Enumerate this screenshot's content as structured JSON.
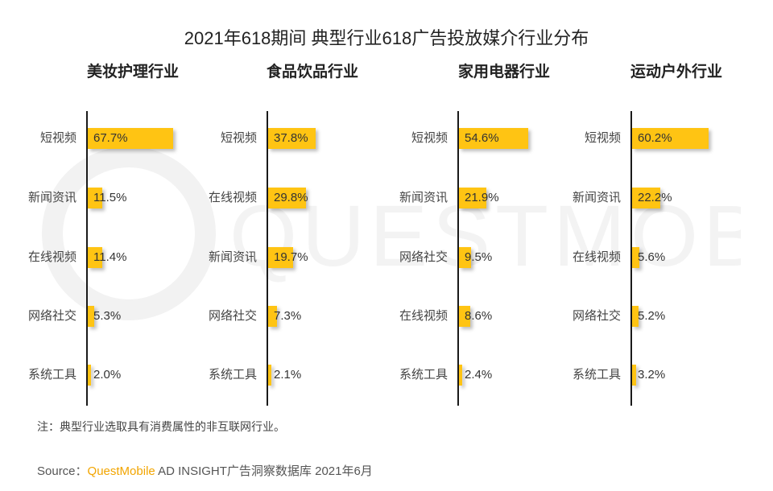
{
  "chart_data": {
    "type": "bar",
    "title": "2021年618期间 典型行业618广告投放媒介行业分布",
    "panels": [
      {
        "title": "美妆护理行业",
        "categories": [
          "短视频",
          "新闻资讯",
          "在线视频",
          "网络社交",
          "系统工具"
        ],
        "values": [
          67.7,
          11.5,
          11.4,
          5.3,
          2.0
        ],
        "labels": [
          "67.7%",
          "11.5%",
          "11.4%",
          "5.3%",
          "2.0%"
        ]
      },
      {
        "title": "食品饮品行业",
        "categories": [
          "短视频",
          "在线视频",
          "新闻资讯",
          "网络社交",
          "系统工具"
        ],
        "values": [
          37.8,
          29.8,
          19.7,
          7.3,
          2.1
        ],
        "labels": [
          "37.8%",
          "29.8%",
          "19.7%",
          "7.3%",
          "2.1%"
        ]
      },
      {
        "title": "家用电器行业",
        "categories": [
          "短视频",
          "新闻资讯",
          "网络社交",
          "在线视频",
          "系统工具"
        ],
        "values": [
          54.6,
          21.9,
          9.5,
          8.6,
          2.4
        ],
        "labels": [
          "54.6%",
          "21.9%",
          "9.5%",
          "8.6%",
          "2.4%"
        ]
      },
      {
        "title": "运动户外行业",
        "categories": [
          "短视频",
          "新闻资讯",
          "在线视频",
          "网络社交",
          "系统工具"
        ],
        "values": [
          60.2,
          22.2,
          5.6,
          5.2,
          3.2
        ],
        "labels": [
          "60.2%",
          "22.2%",
          "5.6%",
          "5.2%",
          "3.2%"
        ]
      }
    ],
    "unit": "%",
    "bar_color": "#ffc413"
  },
  "footer": {
    "note": "注：典型行业选取具有消费属性的非互联网行业。",
    "source_prefix": "Source：",
    "source_brand": "QuestMobile",
    "source_suffix": " AD INSIGHT广告洞察数据库 2021年6月"
  },
  "watermark": {
    "text": "QUESTMOBILE"
  }
}
